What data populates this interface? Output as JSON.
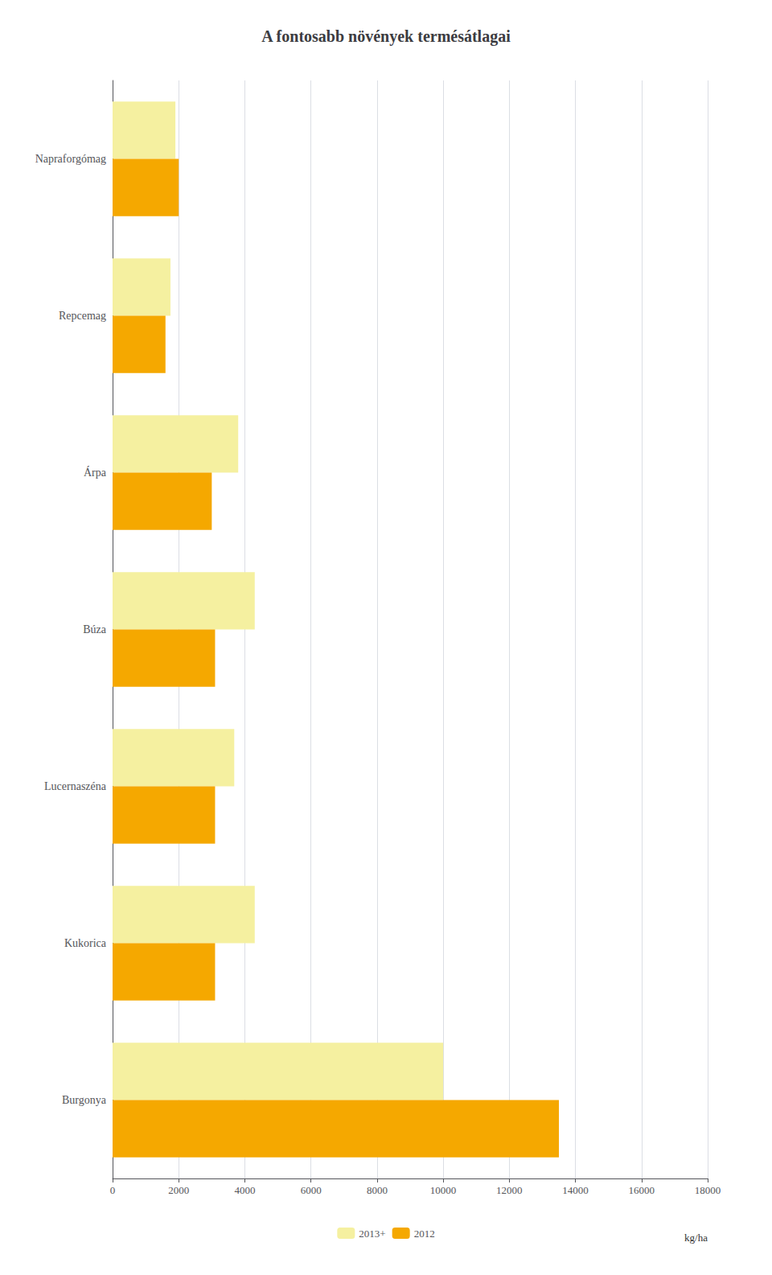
{
  "chart_data": {
    "type": "bar",
    "orientation": "horizontal",
    "title": "A fontosabb növények termésátlagai",
    "categories": [
      "Napraforgómag",
      "Repcemag",
      "Árpa",
      "Búza",
      "Lucernaszéna",
      "Kukorica",
      "Burgonya"
    ],
    "series": [
      {
        "name": "2013+",
        "color": "#f5f0a0",
        "values": [
          1900,
          1750,
          3800,
          4300,
          3680,
          4300,
          10000
        ]
      },
      {
        "name": "2012",
        "color": "#f5a800",
        "values": [
          2000,
          1600,
          3000,
          3100,
          3100,
          3100,
          13500
        ]
      }
    ],
    "xlim": [
      0,
      18000
    ],
    "xticks": [
      0,
      2000,
      4000,
      6000,
      8000,
      10000,
      12000,
      14000,
      16000,
      18000
    ],
    "grid": true,
    "legend": "bottom",
    "annotations": [
      "kg/ha"
    ]
  }
}
